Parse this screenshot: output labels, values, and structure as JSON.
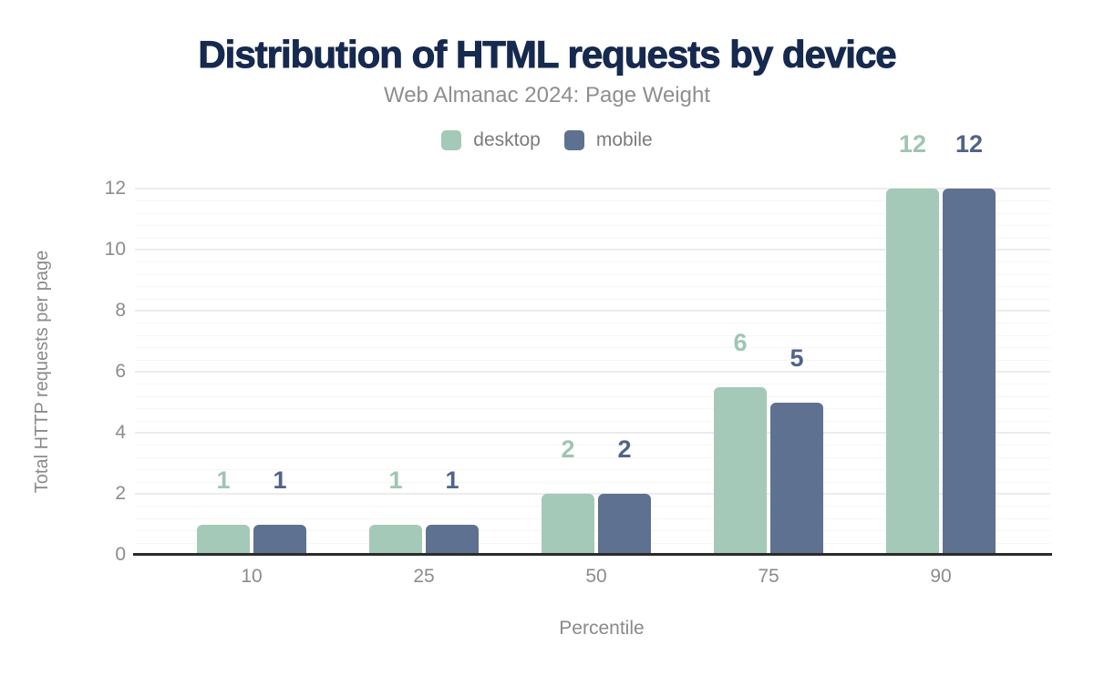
{
  "chart_data": {
    "type": "bar",
    "title": "Distribution of HTML requests by device",
    "subtitle": "Web Almanac 2024: Page Weight",
    "xlabel": "Percentile",
    "ylabel": "Total HTTP requests per page",
    "categories": [
      "10",
      "25",
      "50",
      "75",
      "90"
    ],
    "series": [
      {
        "name": "desktop",
        "values": [
          1,
          1,
          2,
          5.5,
          12
        ],
        "labels": [
          "1",
          "1",
          "2",
          "6",
          "12"
        ],
        "color": "#a5c9b8",
        "label_color": "#9ec6b2"
      },
      {
        "name": "mobile",
        "values": [
          1,
          1,
          2,
          5,
          12
        ],
        "labels": [
          "1",
          "1",
          "2",
          "5",
          "12"
        ],
        "color": "#5f7190",
        "label_color": "#4f6488"
      }
    ],
    "ylim": [
      0,
      12
    ],
    "y_ticks": [
      0,
      2,
      4,
      6,
      8,
      10,
      12
    ],
    "minor_grid_step": 0.4,
    "grid": true,
    "legend_position": "top-center"
  },
  "colors": {
    "title": "#16294e",
    "subtitle": "#8e8e8e",
    "legend_text": "#7b7b7b",
    "tick_label": "#8c8c8c",
    "axis_title": "#8a8a8a",
    "axis_line": "#2b2b2b",
    "grid_major": "#ececec",
    "grid_minor": "#f6f6f6",
    "background": "#ffffff"
  }
}
